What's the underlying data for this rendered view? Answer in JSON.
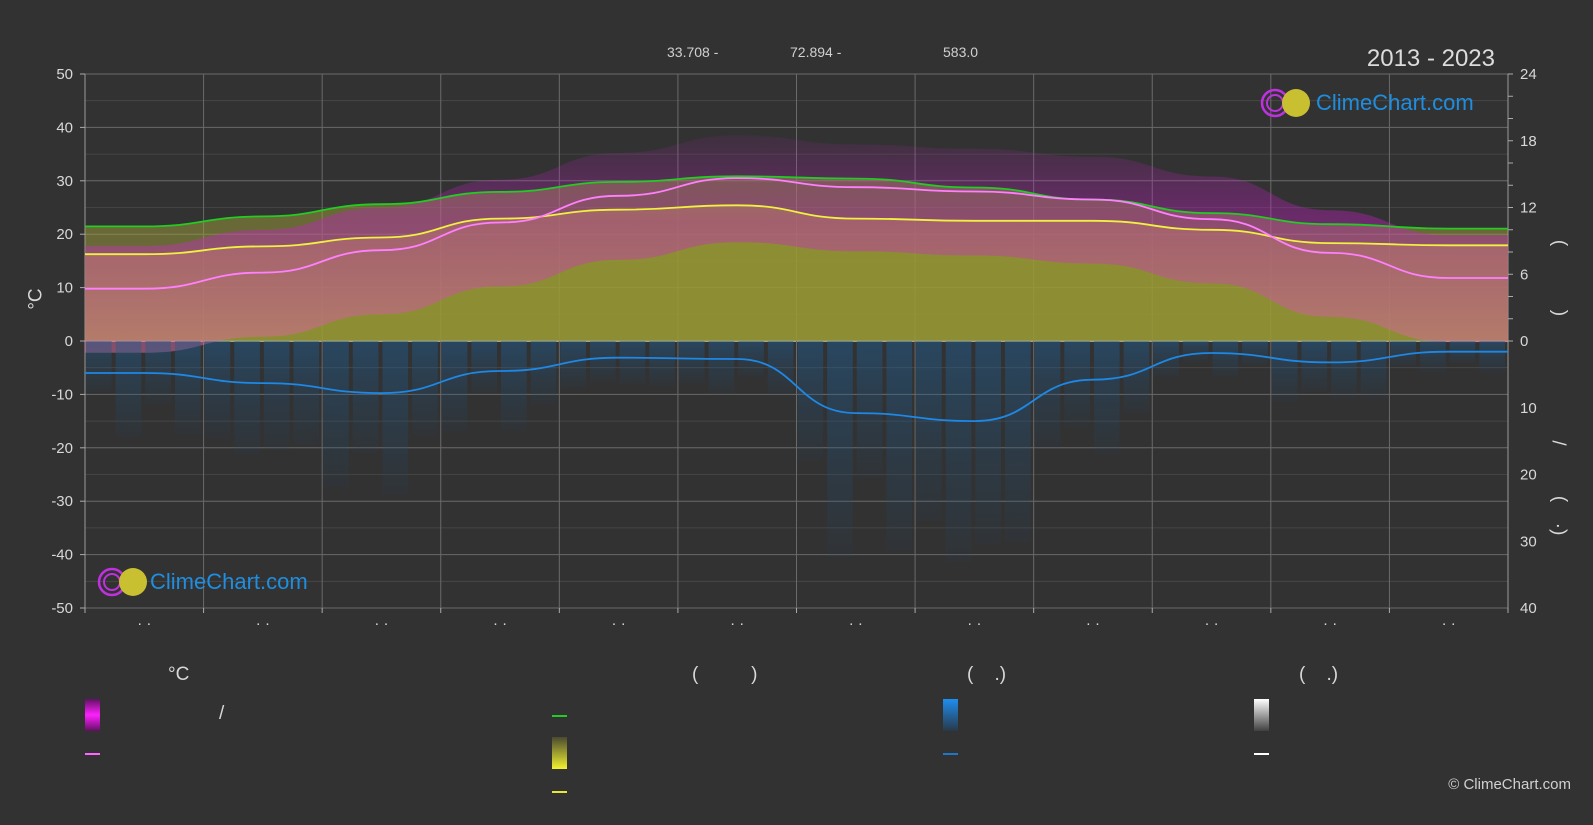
{
  "header": {
    "latitude": "33.708 -",
    "longitude": "72.894 -",
    "elevation": "583.0",
    "period": "2013 - 2023"
  },
  "axes": {
    "left_unit": "°C",
    "left_ticks": [
      "50",
      "40",
      "30",
      "20",
      "10",
      "0",
      "-10",
      "-20",
      "-30",
      "-40",
      "-50"
    ],
    "right_top_ticks": [
      "24",
      "18",
      "12",
      "6",
      "0"
    ],
    "right_bottom_ticks": [
      "10",
      "20",
      "30",
      "40"
    ],
    "right_axis_marks": [
      ")",
      "(",
      "/",
      ")",
      "(·"
    ],
    "month_labels": [
      "· ·",
      "· ·",
      "· ·",
      "· ·",
      "· ·",
      "· ·",
      "· ·",
      "· ·",
      "· ·",
      "· ·",
      "· ·",
      "· ·"
    ]
  },
  "legend": {
    "temperature_title": "°C",
    "sunshine_title": "(          )",
    "precip_title": "(    .)",
    "snow_title": "(    .)",
    "slash": "/"
  },
  "logo_text": "ClimeChart.com",
  "copyright": "© ClimeChart.com",
  "colors": {
    "background": "#323232",
    "max_temp": "#ff66ff",
    "min_temp_range": "#e000e0",
    "daylight": "#22cc22",
    "sunshine": "#e8e830",
    "precipitation": "#1e78c8",
    "snow": "#ffffff"
  },
  "chart_data": {
    "type": "line",
    "title": "",
    "categories": [
      "Jan",
      "Feb",
      "Mar",
      "Apr",
      "May",
      "Jun",
      "Jul",
      "Aug",
      "Sep",
      "Oct",
      "Nov",
      "Dec"
    ],
    "ylim_left": [
      -50,
      50
    ],
    "ylim_right_top": [
      0,
      24
    ],
    "ylim_right_bottom": [
      0,
      40
    ],
    "grid": true,
    "series": [
      {
        "axis": "left",
        "values": [
          9.8,
          12.8,
          17.0,
          22.2,
          27.2,
          30.5,
          28.8,
          28.0,
          26.5,
          22.8,
          16.5,
          11.8
        ]
      },
      {
        "axis": "right_top",
        "values": [
          10.3,
          11.2,
          12.3,
          13.4,
          14.3,
          14.8,
          14.6,
          13.8,
          12.7,
          11.5,
          10.5,
          10.1
        ]
      },
      {
        "axis": "right_top",
        "values": [
          7.8,
          8.5,
          9.3,
          11.0,
          11.8,
          12.2,
          11.0,
          10.8,
          10.8,
          10.0,
          8.8,
          8.6
        ]
      },
      {
        "axis": "right_bottom",
        "values": [
          4.8,
          6.3,
          7.8,
          4.5,
          2.5,
          2.7,
          10.8,
          12.0,
          5.8,
          1.8,
          3.2,
          1.6
        ]
      }
    ]
  }
}
